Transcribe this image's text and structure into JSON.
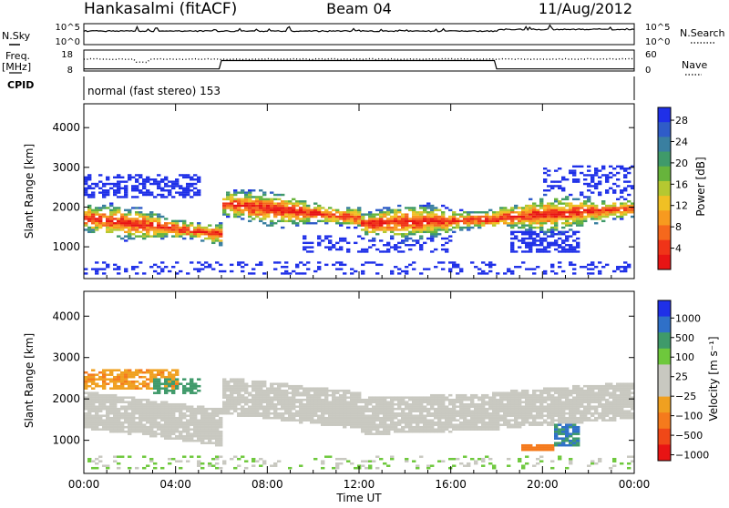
{
  "header": {
    "title": "Hankasalmi (fitACF)",
    "beam": "Beam 04",
    "date": "11/Aug/2012"
  },
  "side_labels": {
    "nsky": "N.Sky",
    "freq": "Freq.",
    "mhz": "[MHz]",
    "cpid": "CPID",
    "nsearch": "N.Search",
    "nave": "Nave"
  },
  "top_axes": {
    "nsky_ticks": [
      "10^5",
      "10^0"
    ],
    "nsearch_ticks": [
      "10^5",
      "10^0"
    ],
    "freq_ticks": [
      "18",
      "8"
    ],
    "nave_ticks": [
      "60",
      "0"
    ]
  },
  "cpid_text": "normal (fast stereo) 153",
  "chart_data": [
    {
      "type": "heatmap",
      "name": "power",
      "ylabel": "Slant Range [km]",
      "xlabel": "",
      "x_ticks": [
        "00:00",
        "04:00",
        "08:00",
        "12:00",
        "16:00",
        "20:00",
        "00:00"
      ],
      "y_ticks": [
        1000,
        2000,
        3000,
        4000
      ],
      "ylim": [
        200,
        4600
      ],
      "xlim_hours": [
        0,
        24
      ],
      "colorbar": {
        "label": "Power [dB]",
        "ticks": [
          "4",
          "8",
          "12",
          "16",
          "20",
          "24",
          "28"
        ],
        "colors": [
          "#1f30e8",
          "#2f5cc8",
          "#3a7fa0",
          "#3f9a6a",
          "#67b43c",
          "#b5c831",
          "#f0c024",
          "#f79a1f",
          "#f5681c",
          "#f03418",
          "#e81414"
        ]
      }
    },
    {
      "type": "heatmap",
      "name": "velocity",
      "ylabel": "Slant Range [km]",
      "xlabel": "Time UT",
      "x_ticks": [
        "00:00",
        "04:00",
        "08:00",
        "12:00",
        "16:00",
        "20:00",
        "00:00"
      ],
      "y_ticks": [
        1000,
        2000,
        3000,
        4000
      ],
      "ylim": [
        200,
        4600
      ],
      "xlim_hours": [
        0,
        24
      ],
      "colorbar": {
        "label": "Velocity [m s⁻¹]",
        "ticks": [
          "1000",
          "500",
          "100",
          "25",
          "−25",
          "−100",
          "−500",
          "−1000"
        ],
        "colors": [
          "#1f30e8",
          "#2f70c8",
          "#3f9a6a",
          "#6ec83c",
          "#c8c8c0",
          "#c8c8c0",
          "#f0a020",
          "#f57a1c",
          "#f04818",
          "#e81414"
        ]
      }
    }
  ]
}
